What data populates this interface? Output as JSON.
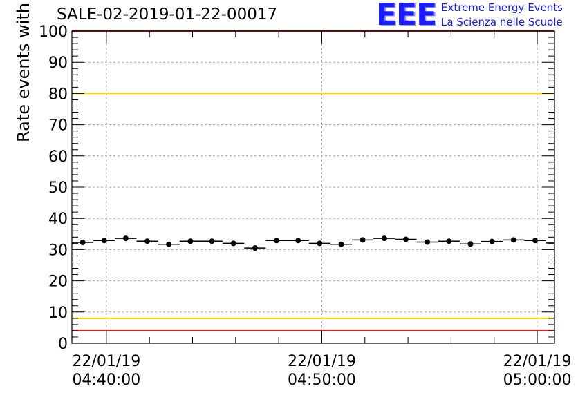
{
  "chart_data": {
    "type": "scatter",
    "title": "SALE-02-2019-01-22-00017",
    "ylabel": "Rate events with hits [Hz]",
    "xlabel": "",
    "ylim": [
      0,
      100
    ],
    "yticks": [
      0,
      10,
      20,
      30,
      40,
      50,
      60,
      70,
      80,
      90,
      100
    ],
    "x_range_minutes": [
      -1.6,
      20.8
    ],
    "xticks": [
      {
        "minute": 0,
        "date": "22/01/19",
        "time": "04:40:00"
      },
      {
        "minute": 10,
        "date": "22/01/19",
        "time": "04:50:00"
      },
      {
        "minute": 20,
        "date": "22/01/19",
        "time": "05:00:00"
      }
    ],
    "grid": true,
    "bin_width_minutes": 1,
    "x": [
      -1.1,
      -0.1,
      0.9,
      1.9,
      2.9,
      3.9,
      4.9,
      5.9,
      6.9,
      7.9,
      8.9,
      9.9,
      10.9,
      11.9,
      12.9,
      13.9,
      14.9,
      15.9,
      16.9,
      17.9,
      18.9,
      19.9,
      20.9
    ],
    "values": [
      32.3,
      32.9,
      33.6,
      32.7,
      31.7,
      32.7,
      32.7,
      32.0,
      30.5,
      32.9,
      32.9,
      32.0,
      31.7,
      33.1,
      33.6,
      33.3,
      32.4,
      32.7,
      31.8,
      32.6,
      33.1,
      32.9,
      32.1
    ],
    "reference_lines": [
      {
        "y": 100,
        "color": "#ee2222"
      },
      {
        "y": 80,
        "color": "#ffd700"
      },
      {
        "y": 8,
        "color": "#ffd700"
      },
      {
        "y": 4,
        "color": "#ee2222"
      }
    ]
  },
  "logo": {
    "mark": "EEE",
    "line1": "Extreme Energy Events",
    "line2": "La Scienza nelle Scuole"
  }
}
